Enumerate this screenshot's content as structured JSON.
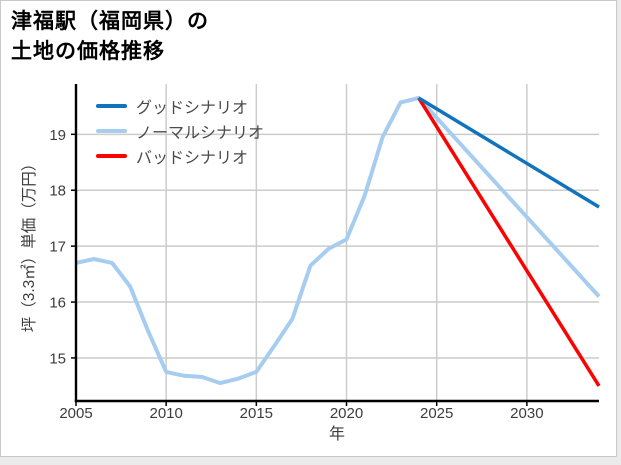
{
  "title": {
    "line1": "津福駅（福岡県）の",
    "line2": "土地の価格推移"
  },
  "colors": {
    "grid": "#cccccc",
    "axis": "#000000",
    "tick_label": "#3d3d3d",
    "legend_text": "#4a4a4a",
    "good_blue": "#1273bd",
    "normal_lightblue": "#a6cdf0",
    "bad_red": "#ff0000",
    "background": "#ffffff",
    "page_background": "#ebebeb",
    "border": "#c9c9c9"
  },
  "chart_data": {
    "type": "line",
    "title": "津福駅（福岡県）の土地の価格推移",
    "xlabel": "年",
    "ylabel": "坪（3.3㎡）単価（万円）",
    "xlim": [
      2005,
      2034
    ],
    "ylim": [
      14.23,
      19.9
    ],
    "xticks": [
      2005,
      2010,
      2015,
      2020,
      2025,
      2030
    ],
    "yticks": [
      15,
      16,
      17,
      18,
      19
    ],
    "grid": true,
    "legend_position": "upper-left",
    "draw_order": [
      1,
      2,
      0
    ],
    "series": [
      {
        "id": "good",
        "name": "グッドシナリオ",
        "color": "#1273bd",
        "line_width": 3.5,
        "x": [
          2024,
          2034
        ],
        "values": [
          19.65,
          17.7
        ]
      },
      {
        "id": "normal",
        "name": "ノーマルシナリオ",
        "color": "#a6cdf0",
        "line_width": 4,
        "x": [
          2005,
          2006,
          2007,
          2008,
          2009,
          2010,
          2011,
          2012,
          2013,
          2014,
          2015,
          2016,
          2017,
          2018,
          2019,
          2020,
          2021,
          2022,
          2023,
          2024,
          2034
        ],
        "values": [
          16.7,
          16.77,
          16.7,
          16.28,
          15.48,
          14.75,
          14.68,
          14.66,
          14.55,
          14.63,
          14.75,
          15.22,
          15.7,
          16.65,
          16.95,
          17.12,
          17.9,
          18.95,
          19.57,
          19.65,
          16.1
        ]
      },
      {
        "id": "bad",
        "name": "バッドシナリオ",
        "color": "#ff0000",
        "line_width": 3.5,
        "x": [
          2024,
          2034
        ],
        "values": [
          19.65,
          14.5
        ]
      }
    ]
  }
}
